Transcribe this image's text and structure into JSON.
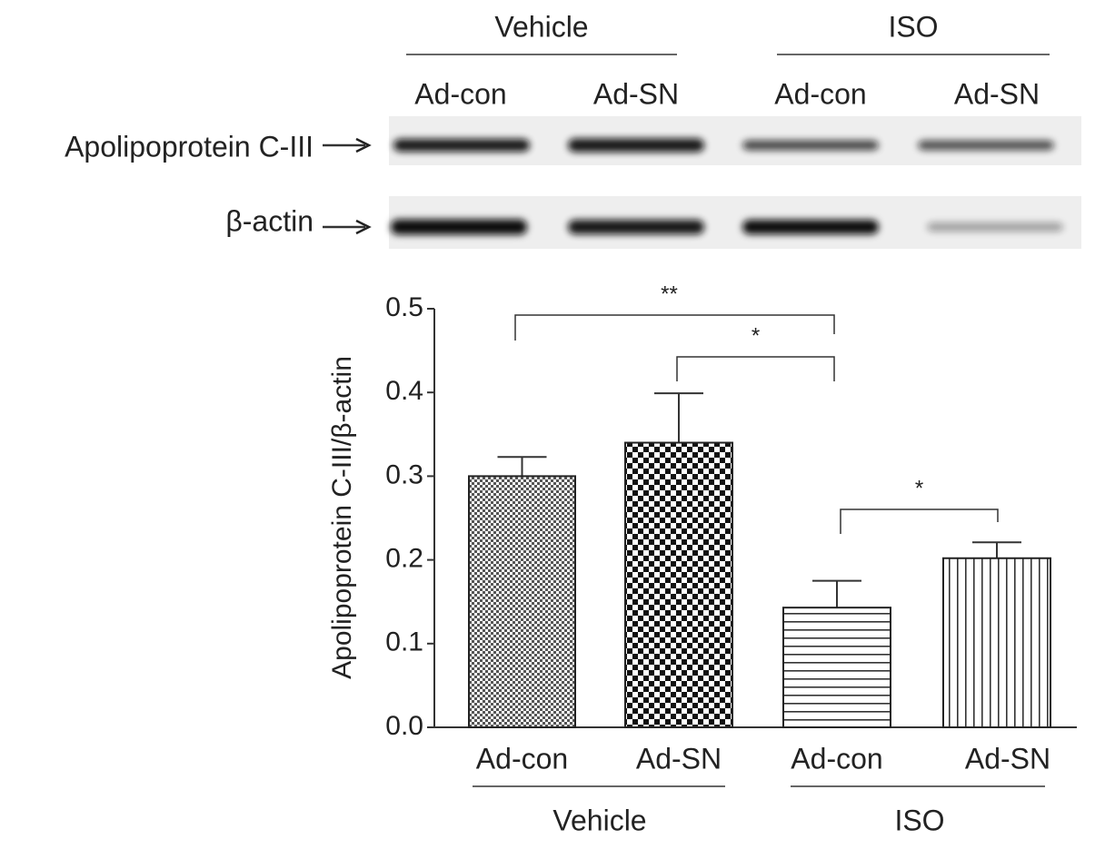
{
  "blot": {
    "groups": [
      "Vehicle",
      "ISO"
    ],
    "lanes": [
      "Ad-con",
      "Ad-SN",
      "Ad-con",
      "Ad-SN"
    ],
    "rows": [
      "Apolipoprotein C-III",
      "β-actin"
    ]
  },
  "chart_data": {
    "type": "bar",
    "ylabel": "Apolipoprotein C-III/β-actin",
    "categories": [
      "Ad-con",
      "Ad-SN",
      "Ad-con",
      "Ad-SN"
    ],
    "groups": [
      "Vehicle",
      "ISO"
    ],
    "values": [
      0.3,
      0.34,
      0.143,
      0.202
    ],
    "errors": [
      0.023,
      0.059,
      0.032,
      0.019
    ],
    "ylim": [
      0,
      0.5
    ],
    "yticks": [
      {
        "value": 0,
        "label": "0.0"
      },
      0.1,
      0.2,
      0.3,
      0.4,
      0.5
    ],
    "annotations": [
      "**",
      "*",
      "*"
    ]
  }
}
